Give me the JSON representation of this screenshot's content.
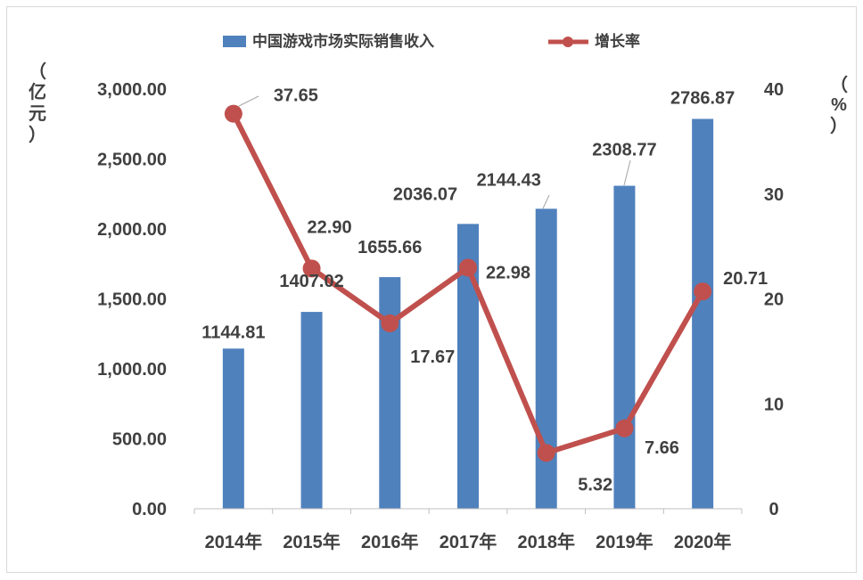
{
  "chart_data": {
    "type": "bar+line",
    "categories": [
      "2014年",
      "2015年",
      "2016年",
      "2017年",
      "2018年",
      "2019年",
      "2020年"
    ],
    "series": [
      {
        "name": "中国游戏市场实际销售收入",
        "type": "bar",
        "axis": "left",
        "color": "#4f81bd",
        "values": [
          1144.81,
          1407.02,
          1655.66,
          2036.07,
          2144.43,
          2308.77,
          2786.87
        ]
      },
      {
        "name": "增长率",
        "type": "line",
        "axis": "right",
        "color": "#c0504d",
        "values": [
          37.65,
          22.9,
          17.67,
          22.98,
          5.32,
          7.66,
          20.71
        ]
      }
    ],
    "bar_labels": [
      "1144.81",
      "1407.02",
      "1655.66",
      "2036.07",
      "2144.43",
      "2308.77",
      "2786.87"
    ],
    "line_labels": [
      "37.65",
      "22.90",
      "17.67",
      "22.98",
      "5.32",
      "7.66",
      "20.71"
    ],
    "y_left": {
      "label": "（亿元）",
      "ylim": [
        0,
        3000
      ],
      "ticks": [
        "0.00",
        "500.00",
        "1,000.00",
        "1,500.00",
        "2,000.00",
        "2,500.00",
        "3,000.00"
      ]
    },
    "y_right": {
      "label": "（%）",
      "ylim": [
        0,
        40
      ],
      "ticks": [
        "0",
        "10",
        "20",
        "30",
        "40"
      ]
    },
    "legend_position": "top",
    "grid": false
  }
}
